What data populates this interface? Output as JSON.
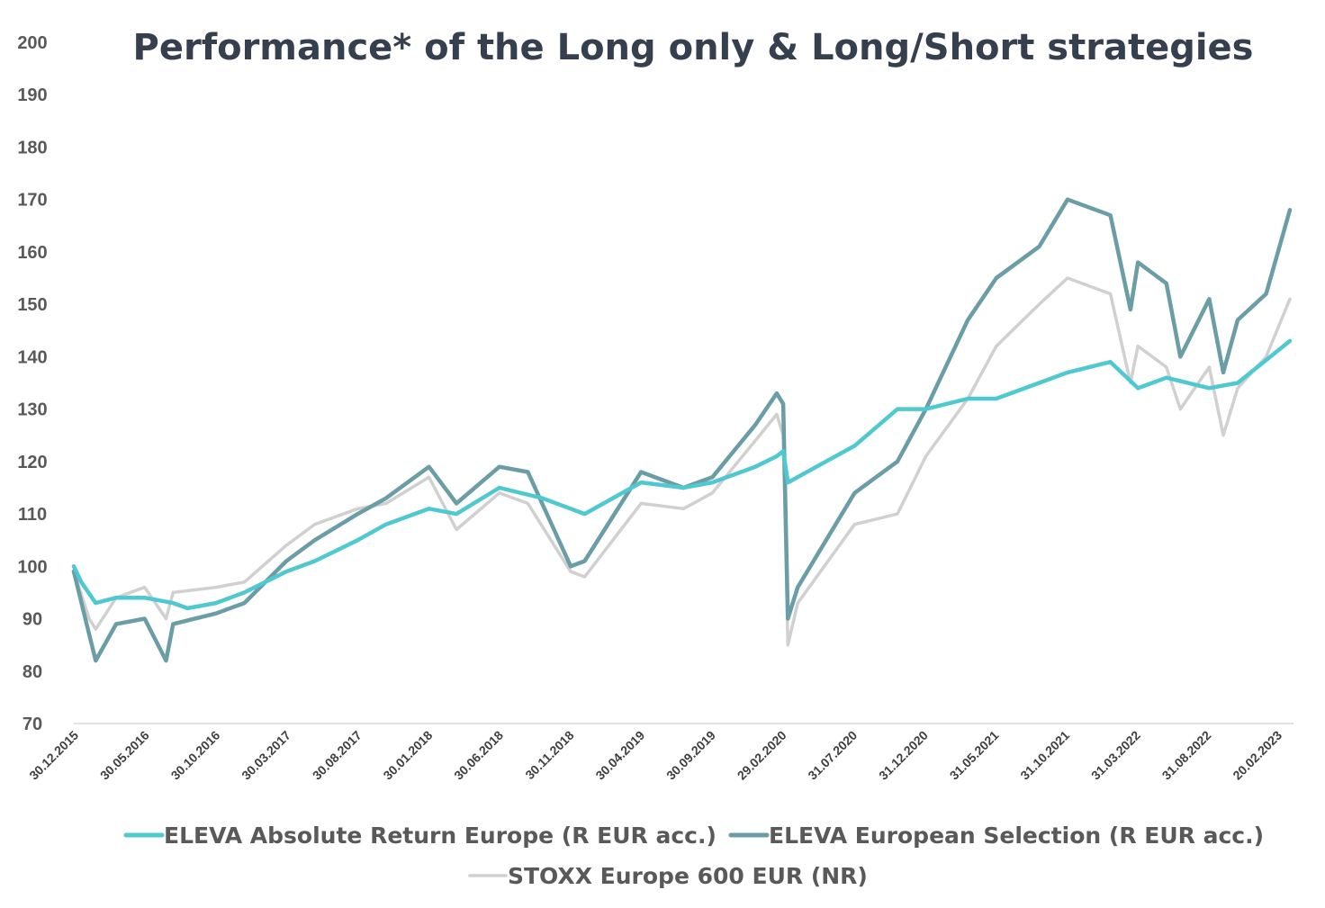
{
  "chart_data": {
    "type": "line",
    "title": "Performance* of the Long only & Long/Short strategies",
    "xlabel": "",
    "ylabel": "",
    "ylim": [
      70,
      200
    ],
    "yticks": [
      70,
      80,
      90,
      100,
      110,
      120,
      130,
      140,
      150,
      160,
      170,
      180,
      190,
      200
    ],
    "xlim": [
      "30.12.2015",
      "20.02.2023"
    ],
    "xticks": [
      "30.12.2015",
      "30.05.2016",
      "30.10.2016",
      "30.03.2017",
      "30.08.2017",
      "30.01.2018",
      "30.06.2018",
      "30.11.2018",
      "30.04.2019",
      "30.09.2019",
      "29.02.2020",
      "31.07.2020",
      "31.12.2020",
      "31.05.2021",
      "31.10.2021",
      "31.03.2022",
      "31.08.2022",
      "20.02.2023"
    ],
    "grid": false,
    "legend_position": "bottom",
    "series": [
      {
        "name": "ELEVA Absolute Return Europe (R EUR acc.)",
        "color": "#4fc9cf",
        "x": [
          "30.12.2015",
          "15.01.2016",
          "15.02.2016",
          "30.03.2016",
          "30.05.2016",
          "30.07.2016",
          "30.08.2016",
          "30.10.2016",
          "30.12.2016",
          "30.03.2017",
          "30.05.2017",
          "30.08.2017",
          "30.10.2017",
          "30.01.2018",
          "30.03.2018",
          "30.06.2018",
          "30.09.2018",
          "30.11.2018",
          "30.12.2018",
          "30.04.2019",
          "30.07.2019",
          "30.09.2019",
          "31.12.2019",
          "15.02.2020",
          "29.02.2020",
          "10.03.2020",
          "31.07.2020",
          "31.10.2020",
          "31.12.2020",
          "31.03.2021",
          "31.05.2021",
          "31.08.2021",
          "31.10.2021",
          "31.01.2022",
          "31.03.2022",
          "31.05.2022",
          "31.08.2022",
          "31.10.2022",
          "20.02.2023"
        ],
        "y": [
          100,
          97,
          93,
          94,
          94,
          93,
          92,
          93,
          95,
          99,
          101,
          105,
          108,
          111,
          110,
          115,
          113,
          111,
          110,
          116,
          115,
          116,
          119,
          121,
          122,
          116,
          123,
          130,
          130,
          132,
          132,
          135,
          137,
          139,
          134,
          136,
          134,
          135,
          143
        ]
      },
      {
        "name": "ELEVA European Selection (R EUR acc.)",
        "color": "#6a9da5",
        "x": [
          "30.12.2015",
          "01.02.2016",
          "15.02.2016",
          "30.03.2016",
          "30.05.2016",
          "15.07.2016",
          "30.07.2016",
          "30.10.2016",
          "30.12.2016",
          "30.03.2017",
          "30.05.2017",
          "30.08.2017",
          "30.10.2017",
          "30.01.2018",
          "30.03.2018",
          "30.06.2018",
          "30.08.2018",
          "30.11.2018",
          "30.12.2018",
          "30.04.2019",
          "30.07.2019",
          "30.09.2019",
          "31.12.2019",
          "15.02.2020",
          "29.02.2020",
          "10.03.2020",
          "31.03.2020",
          "31.07.2020",
          "31.10.2020",
          "31.12.2020",
          "31.03.2021",
          "31.05.2021",
          "31.08.2021",
          "31.10.2021",
          "31.01.2022",
          "15.03.2022",
          "31.03.2022",
          "31.05.2022",
          "30.06.2022",
          "31.08.2022",
          "30.09.2022",
          "31.10.2022",
          "31.12.2022",
          "20.02.2023"
        ],
        "y": [
          99,
          87,
          82,
          89,
          90,
          82,
          89,
          91,
          93,
          101,
          105,
          110,
          113,
          119,
          112,
          119,
          118,
          100,
          101,
          118,
          115,
          117,
          127,
          133,
          131,
          90,
          96,
          114,
          120,
          130,
          147,
          155,
          161,
          170,
          167,
          149,
          158,
          154,
          140,
          151,
          137,
          147,
          152,
          168
        ]
      },
      {
        "name": "STOXX Europe 600 EUR (NR)",
        "color": "#d0d0d0",
        "x": [
          "30.12.2015",
          "01.02.2016",
          "15.02.2016",
          "30.03.2016",
          "30.05.2016",
          "15.07.2016",
          "30.07.2016",
          "30.10.2016",
          "30.12.2016",
          "30.03.2017",
          "30.05.2017",
          "30.08.2017",
          "30.10.2017",
          "30.01.2018",
          "30.03.2018",
          "30.06.2018",
          "30.08.2018",
          "30.11.2018",
          "30.12.2018",
          "30.04.2019",
          "30.07.2019",
          "30.09.2019",
          "31.12.2019",
          "15.02.2020",
          "29.02.2020",
          "10.03.2020",
          "31.03.2020",
          "31.07.2020",
          "31.10.2020",
          "31.12.2020",
          "31.03.2021",
          "31.05.2021",
          "31.08.2021",
          "31.10.2021",
          "31.01.2022",
          "15.03.2022",
          "31.03.2022",
          "31.05.2022",
          "30.06.2022",
          "31.08.2022",
          "30.09.2022",
          "31.10.2022",
          "31.12.2022",
          "20.02.2023"
        ],
        "y": [
          99,
          90,
          88,
          94,
          96,
          90,
          95,
          96,
          97,
          104,
          108,
          111,
          112,
          117,
          107,
          114,
          112,
          99,
          98,
          112,
          111,
          114,
          124,
          129,
          125,
          85,
          93,
          108,
          110,
          121,
          132,
          142,
          150,
          155,
          152,
          135,
          142,
          138,
          130,
          138,
          125,
          134,
          140,
          151
        ]
      }
    ]
  }
}
